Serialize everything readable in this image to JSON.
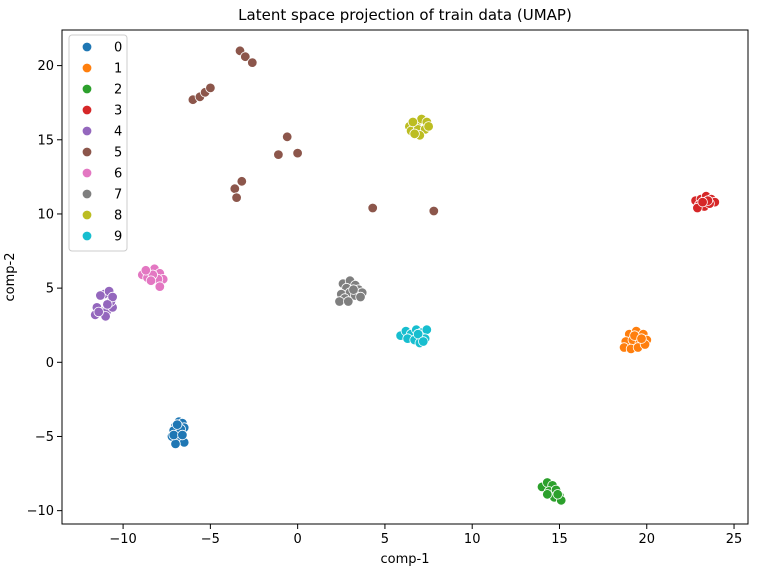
{
  "chart_data": {
    "type": "scatter",
    "title": "Latent space projection of train data (UMAP)",
    "xlabel": "comp-1",
    "ylabel": "comp-2",
    "xlim": [
      -13.5,
      25.8
    ],
    "ylim": [
      -10.9,
      22.4
    ],
    "xticks": [
      -10,
      -5,
      0,
      5,
      10,
      15,
      20,
      25
    ],
    "xtick_labels": [
      "−10",
      "−5",
      "0",
      "5",
      "10",
      "15",
      "20",
      "25"
    ],
    "yticks": [
      -10,
      -5,
      0,
      5,
      10,
      15,
      20
    ],
    "ytick_labels": [
      "−10",
      "−5",
      "0",
      "5",
      "10",
      "15",
      "20"
    ],
    "grid": false,
    "legend": {
      "position": "top-left"
    },
    "series": [
      {
        "name": "0",
        "color": "#1f77b4",
        "points": [
          [
            -6.8,
            -4.0
          ],
          [
            -6.6,
            -4.1
          ],
          [
            -6.5,
            -4.4
          ],
          [
            -7.0,
            -4.3
          ],
          [
            -7.1,
            -4.6
          ],
          [
            -6.7,
            -4.8
          ],
          [
            -6.9,
            -5.0
          ],
          [
            -6.6,
            -5.2
          ],
          [
            -7.2,
            -5.0
          ],
          [
            -6.8,
            -5.3
          ],
          [
            -6.5,
            -5.4
          ],
          [
            -7.0,
            -5.5
          ],
          [
            -6.7,
            -4.5
          ],
          [
            -6.9,
            -4.2
          ],
          [
            -7.1,
            -4.9
          ],
          [
            -6.6,
            -4.9
          ]
        ]
      },
      {
        "name": "1",
        "color": "#ff7f0e",
        "points": [
          [
            19.0,
            1.9
          ],
          [
            19.4,
            2.1
          ],
          [
            19.8,
            1.9
          ],
          [
            18.8,
            1.4
          ],
          [
            19.2,
            1.5
          ],
          [
            19.6,
            1.3
          ],
          [
            20.0,
            1.5
          ],
          [
            18.7,
            1.0
          ],
          [
            19.1,
            0.9
          ],
          [
            19.5,
            1.0
          ],
          [
            19.9,
            1.2
          ],
          [
            19.3,
            1.8
          ],
          [
            19.7,
            1.6
          ]
        ]
      },
      {
        "name": "2",
        "color": "#2ca02c",
        "points": [
          [
            14.0,
            -8.4
          ],
          [
            14.3,
            -8.1
          ],
          [
            14.6,
            -8.3
          ],
          [
            14.4,
            -8.7
          ],
          [
            14.8,
            -8.6
          ],
          [
            15.0,
            -9.0
          ],
          [
            14.7,
            -9.1
          ],
          [
            15.1,
            -9.3
          ],
          [
            14.3,
            -8.9
          ],
          [
            14.9,
            -8.9
          ]
        ]
      },
      {
        "name": "3",
        "color": "#d62728",
        "points": [
          [
            22.8,
            10.9
          ],
          [
            23.1,
            11.0
          ],
          [
            23.4,
            11.2
          ],
          [
            23.7,
            11.0
          ],
          [
            23.9,
            10.8
          ],
          [
            23.0,
            10.6
          ],
          [
            23.3,
            10.5
          ],
          [
            23.6,
            10.7
          ],
          [
            22.9,
            10.4
          ],
          [
            23.5,
            10.9
          ],
          [
            23.2,
            10.8
          ]
        ]
      },
      {
        "name": "4",
        "color": "#9467bd",
        "points": [
          [
            -11.5,
            3.7
          ],
          [
            -11.2,
            3.4
          ],
          [
            -10.9,
            3.5
          ],
          [
            -10.6,
            3.7
          ],
          [
            -11.0,
            3.1
          ],
          [
            -11.6,
            3.2
          ],
          [
            -10.7,
            4.1
          ],
          [
            -11.1,
            4.6
          ],
          [
            -10.8,
            4.8
          ],
          [
            -11.3,
            4.5
          ],
          [
            -10.6,
            4.4
          ],
          [
            -11.4,
            3.4
          ],
          [
            -10.9,
            3.9
          ]
        ]
      },
      {
        "name": "5",
        "color": "#8c564b",
        "points": [
          [
            -3.3,
            21.0
          ],
          [
            -3.0,
            20.6
          ],
          [
            -2.6,
            20.2
          ],
          [
            -6.0,
            17.7
          ],
          [
            -5.6,
            17.9
          ],
          [
            -5.3,
            18.2
          ],
          [
            -5.0,
            18.5
          ],
          [
            -0.6,
            15.2
          ],
          [
            -1.1,
            14.0
          ],
          [
            0.0,
            14.1
          ],
          [
            -3.6,
            11.7
          ],
          [
            -3.2,
            12.2
          ],
          [
            -3.5,
            11.1
          ],
          [
            4.3,
            10.4
          ],
          [
            7.8,
            10.2
          ]
        ]
      },
      {
        "name": "6",
        "color": "#e377c2",
        "points": [
          [
            -8.9,
            5.9
          ],
          [
            -8.5,
            6.1
          ],
          [
            -8.2,
            6.3
          ],
          [
            -7.9,
            6.0
          ],
          [
            -7.7,
            5.6
          ],
          [
            -8.6,
            5.7
          ],
          [
            -8.0,
            5.6
          ],
          [
            -8.3,
            5.9
          ],
          [
            -7.9,
            5.1
          ],
          [
            -8.7,
            6.2
          ],
          [
            -8.4,
            5.5
          ]
        ]
      },
      {
        "name": "7",
        "color": "#7f7f7f",
        "points": [
          [
            2.6,
            5.3
          ],
          [
            3.0,
            5.5
          ],
          [
            3.3,
            5.2
          ],
          [
            2.8,
            5.0
          ],
          [
            3.5,
            4.9
          ],
          [
            3.7,
            4.7
          ],
          [
            2.5,
            4.6
          ],
          [
            3.0,
            4.7
          ],
          [
            2.7,
            4.3
          ],
          [
            3.3,
            4.5
          ],
          [
            2.4,
            4.1
          ],
          [
            2.9,
            4.1
          ],
          [
            3.6,
            4.4
          ],
          [
            3.2,
            4.9
          ]
        ]
      },
      {
        "name": "8",
        "color": "#bcbd22",
        "points": [
          [
            6.4,
            15.9
          ],
          [
            6.8,
            16.1
          ],
          [
            7.1,
            16.4
          ],
          [
            7.4,
            16.2
          ],
          [
            6.5,
            15.6
          ],
          [
            6.9,
            15.7
          ],
          [
            7.3,
            15.7
          ],
          [
            7.0,
            15.3
          ],
          [
            6.7,
            15.4
          ],
          [
            7.5,
            15.9
          ],
          [
            6.6,
            16.2
          ]
        ]
      },
      {
        "name": "9",
        "color": "#17becf",
        "points": [
          [
            5.9,
            1.8
          ],
          [
            6.2,
            2.1
          ],
          [
            6.5,
            1.9
          ],
          [
            6.8,
            2.2
          ],
          [
            7.1,
            2.0
          ],
          [
            7.4,
            2.2
          ],
          [
            6.3,
            1.6
          ],
          [
            6.7,
            1.5
          ],
          [
            7.0,
            1.3
          ],
          [
            7.3,
            1.6
          ],
          [
            6.9,
            1.9
          ],
          [
            7.2,
            1.4
          ]
        ]
      }
    ]
  }
}
